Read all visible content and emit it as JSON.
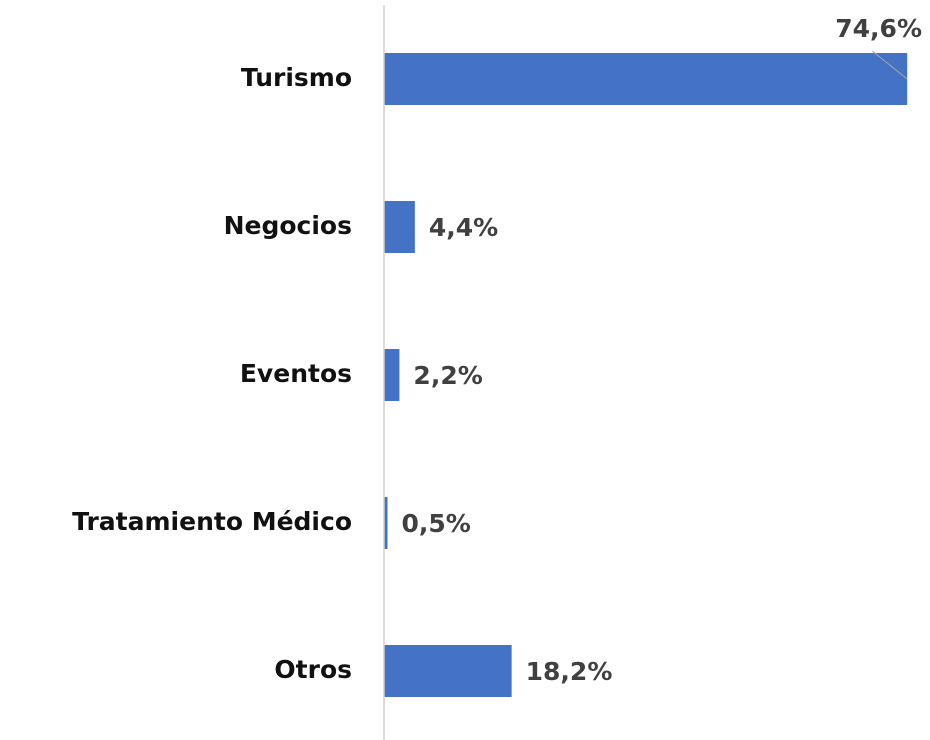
{
  "chart_data": {
    "type": "bar",
    "orientation": "horizontal",
    "categories": [
      "Turismo",
      "Negocios",
      "Eventos",
      "Tratamiento Médico",
      "Otros"
    ],
    "values": [
      74.6,
      4.4,
      2.2,
      0.5,
      18.2
    ],
    "value_labels": [
      "74,6%",
      "4,4%",
      "2,2%",
      "0,5%",
      "18,2%"
    ],
    "color": "#4472c4",
    "xlim": [
      0,
      75
    ]
  }
}
